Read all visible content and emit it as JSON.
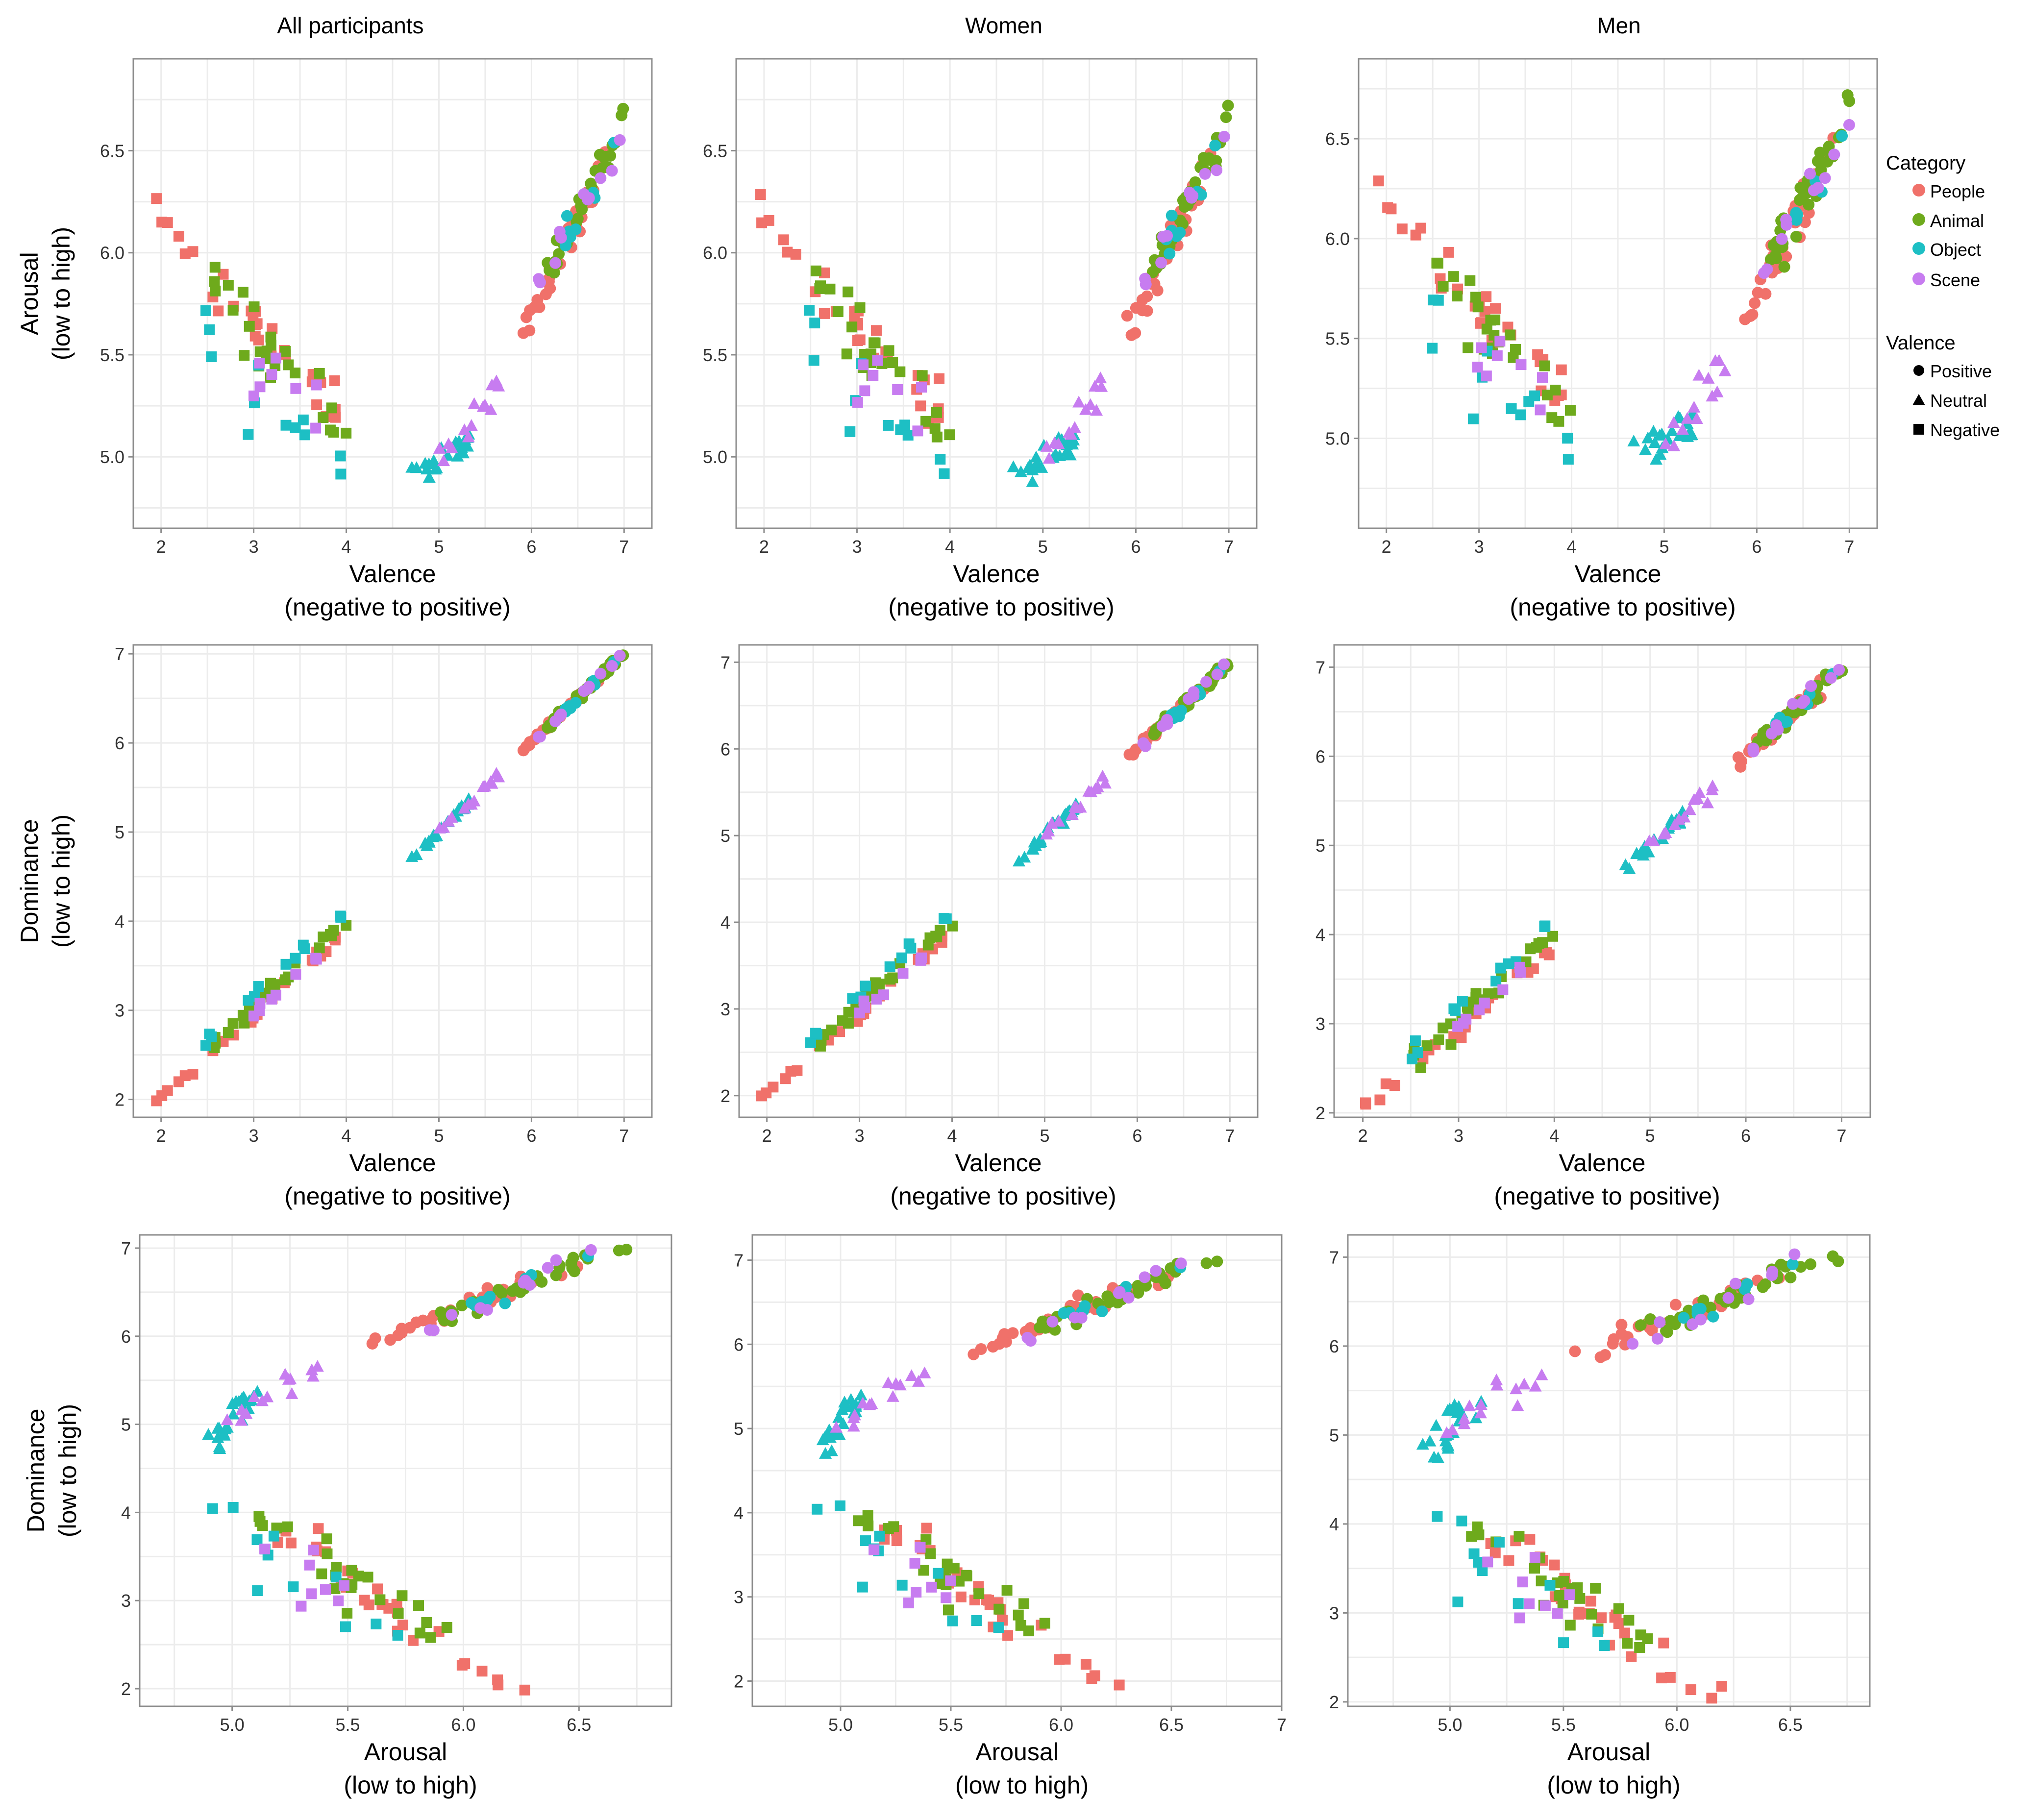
{
  "figure": {
    "column_titles": [
      "All participants",
      "Women",
      "Men"
    ],
    "colors": {
      "People": "#F0716A",
      "Animal": "#6EAA1C",
      "Object": "#1DBFC4",
      "Scene": "#C77CF0",
      "frame": "#8c8c8c",
      "grid": "#ececec",
      "tick_label": "#333333"
    },
    "legend": {
      "category_title": "Category",
      "categories": [
        "People",
        "Animal",
        "Object",
        "Scene"
      ],
      "valence_title": "Valence",
      "valence_levels": [
        {
          "label": "Positive",
          "shape": "circle"
        },
        {
          "label": "Neutral",
          "shape": "triangle"
        },
        {
          "label": "Negative",
          "shape": "square"
        }
      ]
    }
  },
  "chart_data": [
    {
      "id": "r1c1",
      "type": "scatter",
      "title": "All participants",
      "x_var": "valence",
      "y_var": "arousal",
      "xlabel": "Valence",
      "xlabel2": "(negative to positive)",
      "ylabel": "Arousal",
      "ylabel2": "(low to high)",
      "xlim": [
        1.7,
        7.3
      ],
      "ylim": [
        4.65,
        6.95
      ],
      "xticks": [
        "2",
        "3",
        "4",
        "5",
        "6",
        "7"
      ],
      "yticks": [
        "5.0",
        "5.5",
        "6.0",
        "6.5"
      ]
    },
    {
      "id": "r1c2",
      "type": "scatter",
      "title": "Women",
      "x_var": "valence",
      "y_var": "arousal",
      "xlabel": "Valence",
      "xlabel2": "(negative to positive)",
      "ylabel": "",
      "ylabel2": "",
      "xlim": [
        1.7,
        7.3
      ],
      "ylim": [
        4.65,
        6.95
      ],
      "xticks": [
        "2",
        "3",
        "4",
        "5",
        "6",
        "7"
      ],
      "yticks": [
        "5.0",
        "5.5",
        "6.0",
        "6.5"
      ]
    },
    {
      "id": "r1c3",
      "type": "scatter",
      "title": "Men",
      "x_var": "valence",
      "y_var": "arousal",
      "xlabel": "Valence",
      "xlabel2": "(negative to positive)",
      "ylabel": "",
      "ylabel2": "",
      "xlim": [
        1.7,
        7.3
      ],
      "ylim": [
        4.55,
        6.9
      ],
      "xticks": [
        "2",
        "3",
        "4",
        "5",
        "6",
        "7"
      ],
      "yticks": [
        "5.0",
        "5.5",
        "6.0",
        "6.5"
      ]
    },
    {
      "id": "r2c1",
      "type": "scatter",
      "title": "",
      "x_var": "valence",
      "y_var": "dominance",
      "xlabel": "Valence",
      "xlabel2": "(negative to positive)",
      "ylabel": "Dominance",
      "ylabel2": "(low to high)",
      "xlim": [
        1.7,
        7.3
      ],
      "ylim": [
        1.8,
        7.1
      ],
      "xticks": [
        "2",
        "3",
        "4",
        "5",
        "6",
        "7"
      ],
      "yticks": [
        "2",
        "3",
        "4",
        "5",
        "6",
        "7"
      ]
    },
    {
      "id": "r2c2",
      "type": "scatter",
      "title": "",
      "x_var": "valence",
      "y_var": "dominance",
      "xlabel": "Valence",
      "xlabel2": "(negative to positive)",
      "ylabel": "",
      "ylabel2": "",
      "xlim": [
        1.7,
        7.3
      ],
      "ylim": [
        1.75,
        7.2
      ],
      "xticks": [
        "2",
        "3",
        "4",
        "5",
        "6",
        "7"
      ],
      "yticks": [
        "2",
        "3",
        "4",
        "5",
        "6",
        "7"
      ]
    },
    {
      "id": "r2c3",
      "type": "scatter",
      "title": "",
      "x_var": "valence",
      "y_var": "dominance",
      "xlabel": "Valence",
      "xlabel2": "(negative to positive)",
      "ylabel": "",
      "ylabel2": "",
      "xlim": [
        1.7,
        7.3
      ],
      "ylim": [
        1.95,
        7.25
      ],
      "xticks": [
        "2",
        "3",
        "4",
        "5",
        "6",
        "7"
      ],
      "yticks": [
        "2",
        "3",
        "4",
        "5",
        "6",
        "7"
      ]
    },
    {
      "id": "r3c1",
      "type": "scatter",
      "title": "",
      "x_var": "arousal",
      "y_var": "dominance",
      "xlabel": "Arousal",
      "xlabel2": "(low to high)",
      "ylabel": "Dominance",
      "ylabel2": "(low to high)",
      "xlim": [
        4.6,
        6.9
      ],
      "ylim": [
        1.8,
        7.15
      ],
      "xticks": [
        "5.0",
        "5.5",
        "6.0",
        "6.5"
      ],
      "yticks": [
        "2",
        "3",
        "4",
        "5",
        "6",
        "7"
      ]
    },
    {
      "id": "r3c2",
      "type": "scatter",
      "title": "",
      "x_var": "arousal",
      "y_var": "dominance",
      "xlabel": "Arousal",
      "xlabel2": "(low to high)",
      "ylabel": "",
      "ylabel2": "",
      "xlim": [
        4.6,
        7.0
      ],
      "ylim": [
        1.7,
        7.3
      ],
      "xticks": [
        "5.0",
        "5.5",
        "6.0",
        "6.5",
        "7"
      ],
      "yticks": [
        "2",
        "3",
        "4",
        "5",
        "6",
        "7"
      ]
    },
    {
      "id": "r3c3",
      "type": "scatter",
      "title": "",
      "x_var": "arousal",
      "y_var": "dominance",
      "xlabel": "Arousal",
      "xlabel2": "(low to high)",
      "ylabel": "",
      "ylabel2": "",
      "xlim": [
        4.55,
        6.85
      ],
      "ylim": [
        1.95,
        7.25
      ],
      "xticks": [
        "5.0",
        "5.5",
        "6.0",
        "6.5"
      ],
      "yticks": [
        "2",
        "3",
        "4",
        "5",
        "6",
        "7"
      ]
    }
  ]
}
